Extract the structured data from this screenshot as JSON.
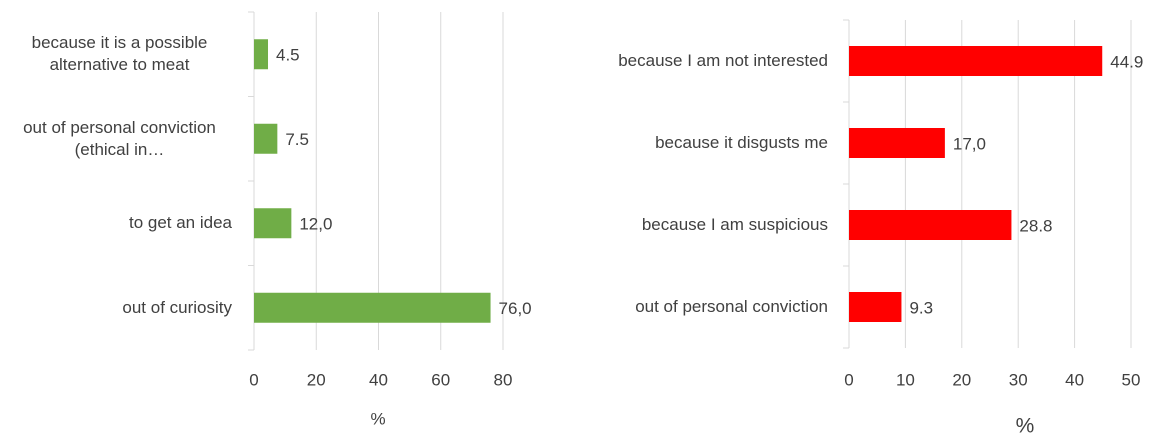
{
  "chart_data": [
    {
      "type": "bar",
      "orientation": "horizontal",
      "categories": [
        "because it is a possible alternative to meat",
        "out of personal conviction (ethical in…",
        "to get an idea",
        "out of curiosity"
      ],
      "values": [
        4.5,
        7.5,
        12.0,
        76.0
      ],
      "value_labels": [
        "4.5",
        "7.5",
        "12,0",
        "76,0"
      ],
      "color": "#70ad47",
      "xlim": [
        0,
        80
      ],
      "xticks": [
        0,
        20,
        40,
        60,
        80
      ],
      "xlabel": "%",
      "grid": true
    },
    {
      "type": "bar",
      "orientation": "horizontal",
      "categories": [
        "because I am not interested",
        "because it disgusts me",
        "because I am suspicious",
        "out of personal conviction"
      ],
      "values": [
        44.9,
        17.0,
        28.8,
        9.3
      ],
      "value_labels": [
        "44.9",
        "17,0",
        "28.8",
        "9.3"
      ],
      "color": "#ff0000",
      "xlim": [
        0,
        50
      ],
      "xticks": [
        0,
        10,
        20,
        30,
        40,
        50
      ],
      "xlabel": "%",
      "grid": true
    }
  ]
}
